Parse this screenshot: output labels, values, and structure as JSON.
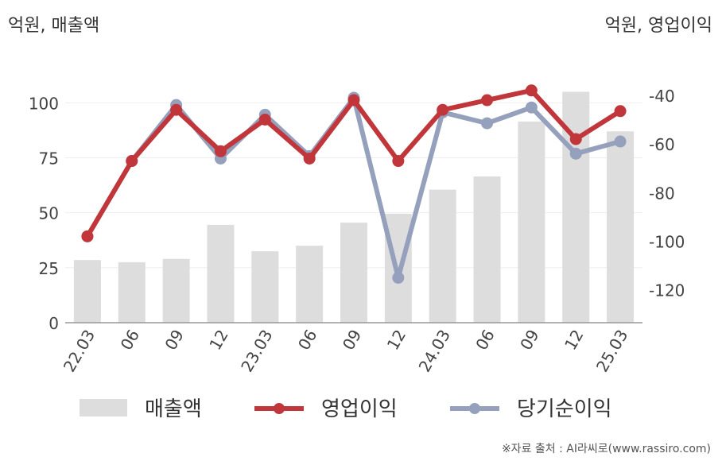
{
  "header": {
    "left_unit": "억원, 매출액",
    "right_unit": "억원, 영업이익"
  },
  "source": "※자료 출처 : AI라씨로(www.rassiro.com)",
  "chart_data": {
    "type": "bar",
    "categories": [
      "22.03",
      "06",
      "09",
      "12",
      "23.03",
      "06",
      "09",
      "12",
      "24.03",
      "06",
      "09",
      "12",
      "25.03"
    ],
    "y_left": {
      "ticks": [
        0,
        25,
        50,
        75,
        100
      ],
      "range": [
        0,
        120
      ]
    },
    "y_right": {
      "ticks": [
        -40,
        -60,
        -80,
        -100,
        -120
      ],
      "range": [
        -133.5,
        -25
      ]
    },
    "series": [
      {
        "name": "매출액",
        "type": "bar",
        "axis": "left",
        "color": "#dddddd",
        "values": [
          28.5,
          27.5,
          29,
          44.5,
          32.5,
          35,
          45.5,
          49.5,
          60.5,
          66.5,
          91.5,
          105,
          87
        ]
      },
      {
        "name": "영업이익",
        "type": "line",
        "axis": "right",
        "color": "#c0363a",
        "values": [
          -98,
          -67,
          -46,
          -63,
          -50,
          -66,
          -42,
          -67,
          -46,
          -42,
          -38,
          -58,
          -46.5
        ]
      },
      {
        "name": "당기순이익",
        "type": "line",
        "axis": "right",
        "color": "#95a0bc",
        "values": [
          -98,
          -67,
          -44,
          -66,
          -48,
          -65,
          -41,
          -115,
          -47,
          -51.5,
          -45,
          -64,
          -59
        ]
      }
    ]
  }
}
